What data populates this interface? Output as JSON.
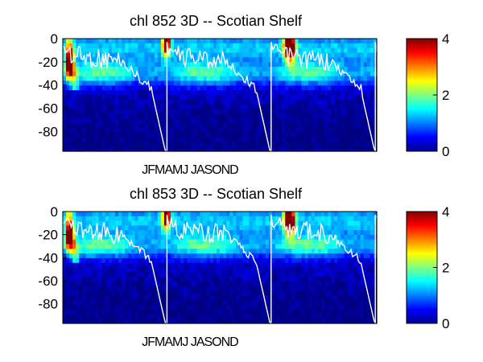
{
  "chart_data": [
    {
      "type": "heatmap",
      "title": "chl  852 3D   -- Scotian Shelf",
      "xlabel": "JFMAMJ JASOND",
      "ylabel": "",
      "yticks": [
        0,
        -20,
        -40,
        -60,
        -80
      ],
      "ylim": [
        -97,
        0
      ],
      "years_shown": 3,
      "colorbar": {
        "ticks": [
          0,
          2,
          4
        ],
        "range": [
          0,
          4
        ],
        "colormap": "jet"
      },
      "overlay_line_color": "#ffffff",
      "bloom_peaks": [
        {
          "x": 0.02,
          "depth": -22,
          "value": 3.6
        },
        {
          "x": 0.33,
          "depth": -2,
          "value": 4.0
        },
        {
          "x": 0.715,
          "depth": -5,
          "value": 3.5
        },
        {
          "x": 0.73,
          "depth": -8,
          "value": 3.1
        }
      ]
    },
    {
      "type": "heatmap",
      "title": "chl  853 3D   -- Scotian Shelf",
      "xlabel": "JFMAMJ JASOND",
      "ylabel": "",
      "yticks": [
        0,
        -20,
        -40,
        -60,
        -80
      ],
      "ylim": [
        -97,
        0
      ],
      "years_shown": 3,
      "colorbar": {
        "ticks": [
          0,
          2,
          4
        ],
        "range": [
          0,
          4
        ],
        "colormap": "jet"
      },
      "overlay_line_color": "#ffffff",
      "bloom_peaks": [
        {
          "x": 0.02,
          "depth": -22,
          "value": 3.4
        },
        {
          "x": 0.33,
          "depth": -3,
          "value": 4.0
        },
        {
          "x": 0.715,
          "depth": -6,
          "value": 3.4
        },
        {
          "x": 0.73,
          "depth": -9,
          "value": 3.0
        }
      ]
    }
  ]
}
